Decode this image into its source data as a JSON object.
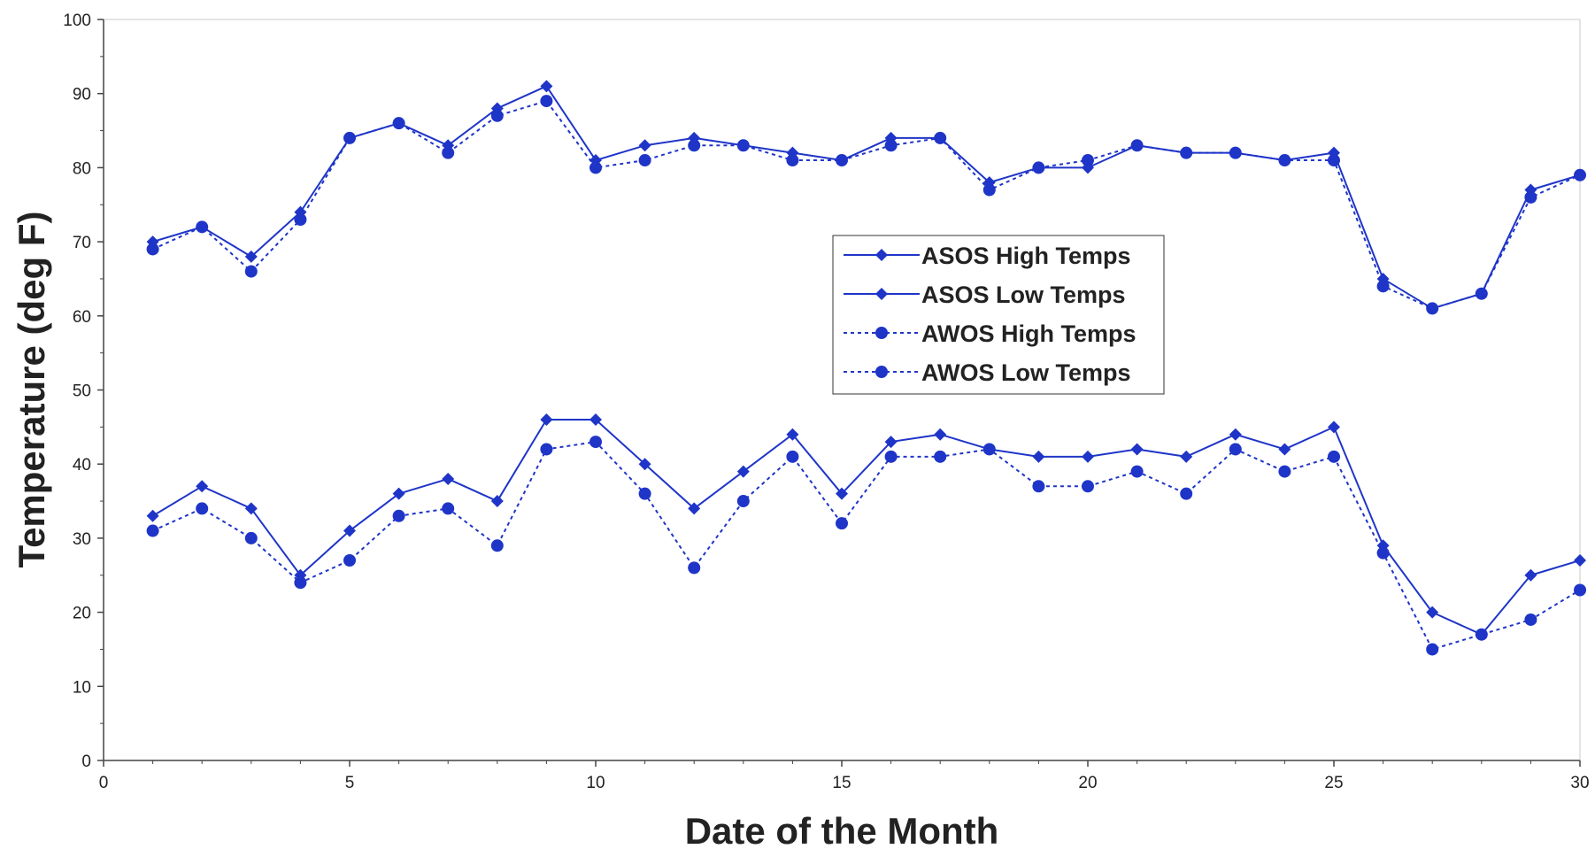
{
  "chart_data": {
    "type": "line",
    "xlabel": "Date of the Month",
    "ylabel": "Temperature (deg F)",
    "xlim": [
      0,
      30
    ],
    "ylim": [
      0,
      100
    ],
    "xticks": [
      0,
      5,
      10,
      15,
      20,
      25,
      30
    ],
    "yticks": [
      0,
      10,
      20,
      30,
      40,
      50,
      60,
      70,
      80,
      90,
      100
    ],
    "grid": false,
    "legend_position": "center-right",
    "x": [
      1,
      2,
      3,
      4,
      5,
      6,
      7,
      8,
      9,
      10,
      11,
      12,
      13,
      14,
      15,
      16,
      17,
      18,
      19,
      20,
      21,
      22,
      23,
      24,
      25,
      26,
      27,
      28,
      29,
      30
    ],
    "series": [
      {
        "name": "ASOS High Temps",
        "line": "solid",
        "marker": "diamond",
        "color": "#1f35c8",
        "values": [
          70,
          72,
          68,
          74,
          84,
          86,
          83,
          88,
          91,
          81,
          83,
          84,
          83,
          82,
          81,
          84,
          84,
          78,
          80,
          80,
          83,
          82,
          82,
          81,
          82,
          65,
          61,
          63,
          77,
          79
        ]
      },
      {
        "name": "ASOS Low Temps",
        "line": "solid",
        "marker": "diamond",
        "color": "#1f35c8",
        "values": [
          33,
          37,
          34,
          25,
          31,
          36,
          38,
          35,
          46,
          46,
          40,
          34,
          39,
          44,
          36,
          43,
          44,
          42,
          41,
          41,
          42,
          41,
          44,
          42,
          45,
          29,
          20,
          17,
          25,
          27
        ]
      },
      {
        "name": "AWOS High Temps",
        "line": "dotted",
        "marker": "circle",
        "color": "#1f35c8",
        "values": [
          69,
          72,
          66,
          73,
          84,
          86,
          82,
          87,
          89,
          80,
          81,
          83,
          83,
          81,
          81,
          83,
          84,
          77,
          80,
          81,
          83,
          82,
          82,
          81,
          81,
          64,
          61,
          63,
          76,
          79
        ]
      },
      {
        "name": "AWOS Low Temps",
        "line": "dotted",
        "marker": "circle",
        "color": "#1f35c8",
        "values": [
          31,
          34,
          30,
          24,
          27,
          33,
          34,
          29,
          42,
          43,
          36,
          26,
          35,
          41,
          32,
          41,
          41,
          42,
          37,
          37,
          39,
          36,
          42,
          39,
          41,
          28,
          15,
          17,
          19,
          23
        ]
      }
    ]
  }
}
